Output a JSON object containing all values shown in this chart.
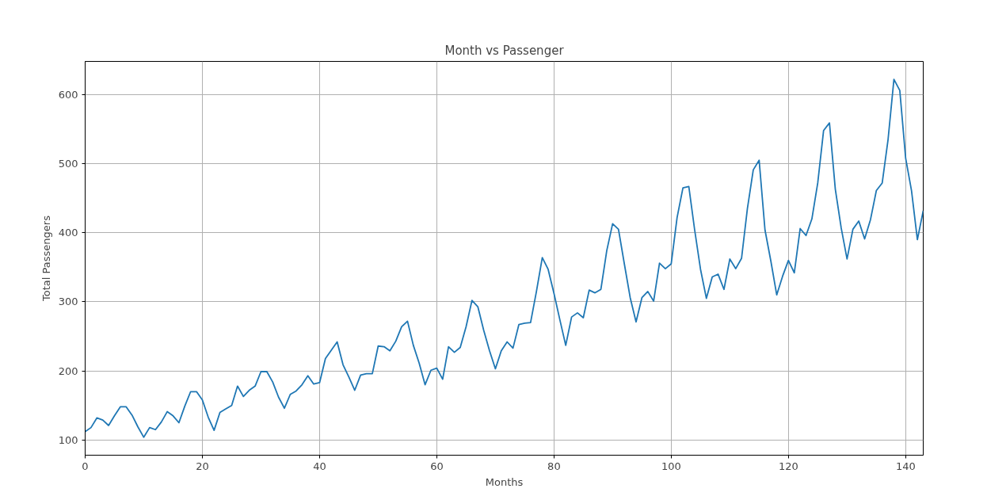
{
  "chart_data": {
    "type": "line",
    "title": "Month vs Passenger",
    "xlabel": "Months",
    "ylabel": "Total Passengers",
    "x": [
      0,
      1,
      2,
      3,
      4,
      5,
      6,
      7,
      8,
      9,
      10,
      11,
      12,
      13,
      14,
      15,
      16,
      17,
      18,
      19,
      20,
      21,
      22,
      23,
      24,
      25,
      26,
      27,
      28,
      29,
      30,
      31,
      32,
      33,
      34,
      35,
      36,
      37,
      38,
      39,
      40,
      41,
      42,
      43,
      44,
      45,
      46,
      47,
      48,
      49,
      50,
      51,
      52,
      53,
      54,
      55,
      56,
      57,
      58,
      59,
      60,
      61,
      62,
      63,
      64,
      65,
      66,
      67,
      68,
      69,
      70,
      71,
      72,
      73,
      74,
      75,
      76,
      77,
      78,
      79,
      80,
      81,
      82,
      83,
      84,
      85,
      86,
      87,
      88,
      89,
      90,
      91,
      92,
      93,
      94,
      95,
      96,
      97,
      98,
      99,
      100,
      101,
      102,
      103,
      104,
      105,
      106,
      107,
      108,
      109,
      110,
      111,
      112,
      113,
      114,
      115,
      116,
      117,
      118,
      119,
      120,
      121,
      122,
      123,
      124,
      125,
      126,
      127,
      128,
      129,
      130,
      131,
      132,
      133,
      134,
      135,
      136,
      137,
      138,
      139,
      140,
      141,
      142,
      143
    ],
    "series": [
      {
        "color": "#1f77b4",
        "values": [
          112,
          118,
          132,
          129,
          121,
          135,
          148,
          148,
          136,
          119,
          104,
          118,
          115,
          126,
          141,
          135,
          125,
          149,
          170,
          170,
          158,
          133,
          114,
          140,
          145,
          150,
          178,
          163,
          172,
          178,
          199,
          199,
          184,
          162,
          146,
          166,
          171,
          180,
          193,
          181,
          183,
          218,
          230,
          242,
          209,
          191,
          172,
          194,
          196,
          196,
          236,
          235,
          229,
          243,
          264,
          272,
          237,
          211,
          180,
          201,
          204,
          188,
          235,
          227,
          234,
          264,
          302,
          293,
          259,
          229,
          203,
          229,
          242,
          233,
          267,
          269,
          270,
          315,
          364,
          347,
          312,
          274,
          237,
          278,
          284,
          277,
          317,
          313,
          318,
          374,
          413,
          405,
          355,
          306,
          271,
          306,
          315,
          301,
          356,
          348,
          355,
          422,
          465,
          467,
          404,
          347,
          305,
          336,
          340,
          318,
          362,
          348,
          363,
          435,
          491,
          505,
          404,
          359,
          310,
          337,
          360,
          342,
          406,
          396,
          420,
          472,
          548,
          559,
          463,
          407,
          362,
          405,
          417,
          391,
          419,
          461,
          472,
          535,
          622,
          606,
          508,
          461,
          390,
          432
        ]
      }
    ],
    "xlim": [
      0,
      143
    ],
    "ylim": [
      78,
      648
    ],
    "xticks": [
      0,
      20,
      40,
      60,
      80,
      100,
      120,
      140
    ],
    "yticks": [
      100,
      200,
      300,
      400,
      500,
      600
    ],
    "grid": true,
    "line_style": "solid"
  }
}
